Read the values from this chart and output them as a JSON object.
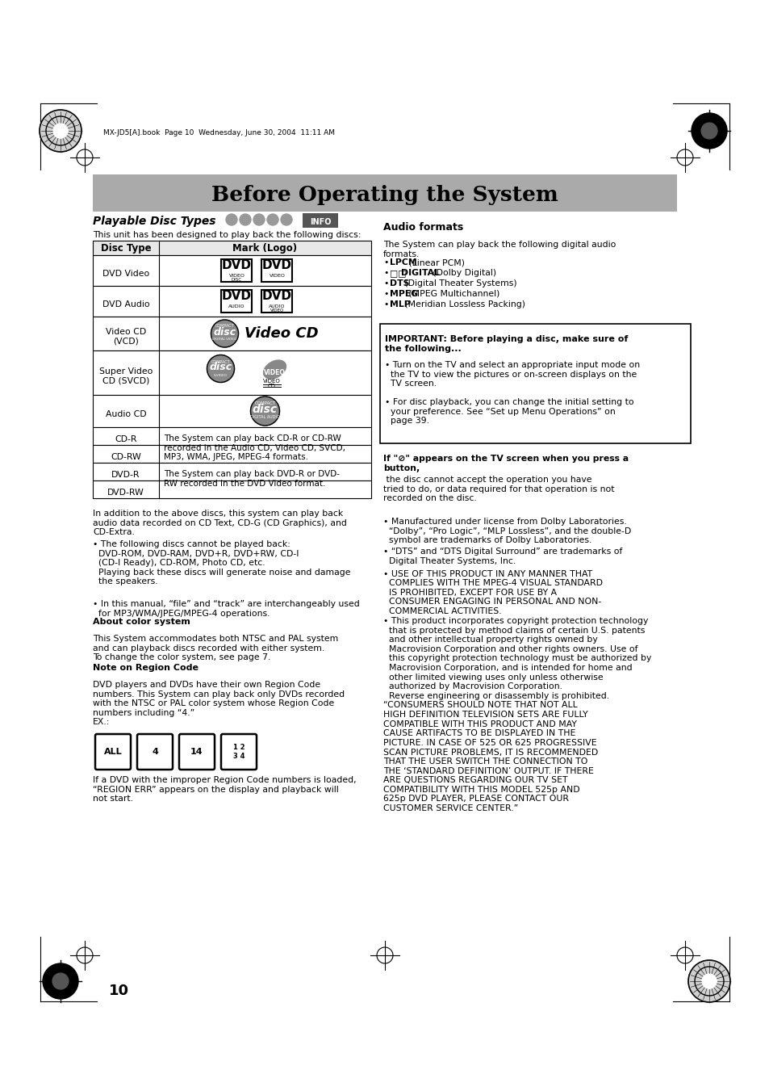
{
  "page_bg": "#ffffff",
  "title": "Before Operating the System",
  "title_bg": "#aaaaaa",
  "header_text": "MX-JD5[A].book  Page 10  Wednesday, June 30, 2004  11:11 AM",
  "section_title_left": "Playable Disc Types",
  "table_header": [
    "Disc Type",
    "Mark (Logo)"
  ],
  "cd_r_text": "The System can play back CD-R or CD-RW\nrecorded in the Audio CD, Video CD, SVCD,\nMP3, WMA, JPEG, MPEG-4 formats.",
  "dvd_r_text": "The System can play back DVD-R or DVD-\nRW recorded in the DVD Video format.",
  "audio_formats_title": "Audio formats",
  "audio_formats_intro": "The System can play back the following digital audio\nformats.",
  "audio_bullet1": "• ",
  "audio_bullet1b": "LPCM",
  "audio_bullet1c": " (Linear PCM)",
  "audio_bullet2a": "• ",
  "audio_bullet2b": "DIGITAL",
  "audio_bullet2c": " (Dolby Digital)",
  "audio_bullet3a": "• ",
  "audio_bullet3b": "DTS",
  "audio_bullet3c": " (Digital Theater Systems)",
  "audio_bullet4a": "• ",
  "audio_bullet4b": "MPEG",
  "audio_bullet4c": " (MPEG Multichannel)",
  "audio_bullet5a": "• ",
  "audio_bullet5b": "MLP",
  "audio_bullet5c": " (Meridian Lossless Packing)",
  "important_title": "IMPORTANT: Before playing a disc, make sure of\nthe following...",
  "important_b1": "• Turn on the TV and select an appropriate input mode on\n  the TV to view the pictures or on-screen displays on the\n  TV screen.",
  "important_b2": "• For disc playback, you can change the initial setting to\n  your preference. See “Set up Menu Operations” on\n  page 39.",
  "no_symbol_bold": "If \"⊘\" appears on the TV screen when you press a\nbutton,",
  "no_symbol_normal": " the disc cannot accept the operation you have\ntried to do, or data required for that operation is not\nrecorded on the disc.",
  "left_col_para1": "In addition to the above discs, this system can play back\naudio data recorded on CD Text, CD-G (CD Graphics), and\nCD-Extra.",
  "left_col_bullet1": "• The following discs cannot be played back:\n  DVD-ROM, DVD-RAM, DVD+R, DVD+RW, CD-I\n  (CD-I Ready), CD-ROM, Photo CD, etc.\n  Playing back these discs will generate noise and damage\n  the speakers.",
  "left_col_bullet2": "• In this manual, “file” and “track” are interchangeably used\n  for MP3/WMA/JPEG/MPEG-4 operations.",
  "about_color_title": "About color system",
  "about_color_text": "This System accommodates both NTSC and PAL system\nand can playback discs recorded with either system.\nTo change the color system, see page 7.",
  "region_code_title": "Note on Region Code",
  "region_code_text": "DVD players and DVDs have their own Region Code\nnumbers. This System can play back only DVDs recorded\nwith the NTSC or PAL color system whose Region Code\nnumbers including “4.”\nEX.:",
  "region_code_footer": "If a DVD with the improper Region Code numbers is loaded,\n“REGION ERR” appears on the display and playback will\nnot start.",
  "right_col_b1": "• Manufactured under license from Dolby Laboratories.\n  “Dolby”, “Pro Logic”, “MLP Lossless”, and the double-D\n  symbol are trademarks of Dolby Laboratories.",
  "right_col_b2": "• “DTS” and “DTS Digital Surround” are trademarks of\n  Digital Theater Systems, Inc.",
  "right_col_b3": "• USE OF THIS PRODUCT IN ANY MANNER THAT\n  COMPLIES WITH THE MPEG-4 VISUAL STANDARD\n  IS PROHIBITED, EXCEPT FOR USE BY A\n  CONSUMER ENGAGING IN PERSONAL AND NON-\n  COMMERCIAL ACTIVITIES.",
  "right_col_b4": "• This product incorporates copyright protection technology\n  that is protected by method claims of certain U.S. patents\n  and other intellectual property rights owned by\n  Macrovision Corporation and other rights owners. Use of\n  this copyright protection technology must be authorized by\n  Macrovision Corporation, and is intended for home and\n  other limited viewing uses only unless otherwise\n  authorized by Macrovision Corporation.\n  Reverse engineering or disassembly is prohibited.",
  "consumers_text": "“CONSUMERS SHOULD NOTE THAT NOT ALL\nHIGH DEFINITION TELEVISION SETS ARE FULLY\nCOMPATIBLE WITH THIS PRODUCT AND MAY\nCAUSE ARTIFACTS TO BE DISPLAYED IN THE\nPICTURE. IN CASE OF 525 OR 625 PROGRESSIVE\nSCAN PICTURE PROBLEMS, IT IS RECOMMENDED\nTHAT THE USER SWITCH THE CONNECTION TO\nTHE ‘STANDARD DEFINITION’ OUTPUT. IF THERE\nARE QUESTIONS REGARDING OUR TV SET\nCOMPATIBILITY WITH THIS MODEL 525p AND\n625p DVD PLAYER, PLEASE CONTACT OUR\nCUSTOMER SERVICE CENTER.”",
  "page_number": "10"
}
